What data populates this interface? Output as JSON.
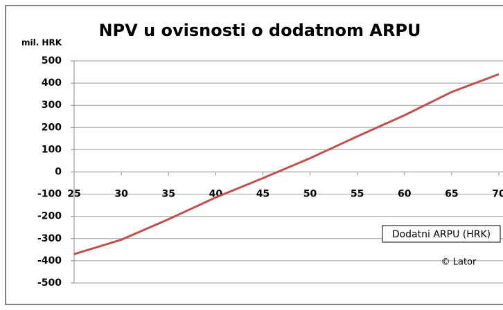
{
  "chart_data": {
    "type": "line",
    "title": "NPV u ovisnosti o dodatnom ARPU",
    "y_label": "mil. HRK",
    "x_label": "Dodatni ARPU (HRK)",
    "annotation": "© Lator",
    "x": [
      25,
      30,
      35,
      40,
      45,
      50,
      55,
      60,
      65,
      70
    ],
    "series": [
      {
        "name": "NPV",
        "color": "#c0504d",
        "values": [
          -370,
          -305,
          -213,
          -115,
          -28,
          62,
          160,
          255,
          360,
          440
        ]
      }
    ],
    "xlim": [
      25,
      70
    ],
    "xticks": [
      25,
      30,
      35,
      40,
      45,
      50,
      55,
      60,
      65,
      70
    ],
    "ylim": [
      -500,
      500
    ],
    "yticks": [
      -500,
      -400,
      -300,
      -200,
      -100,
      0,
      100,
      200,
      300,
      400,
      500
    ],
    "grid": true
  }
}
